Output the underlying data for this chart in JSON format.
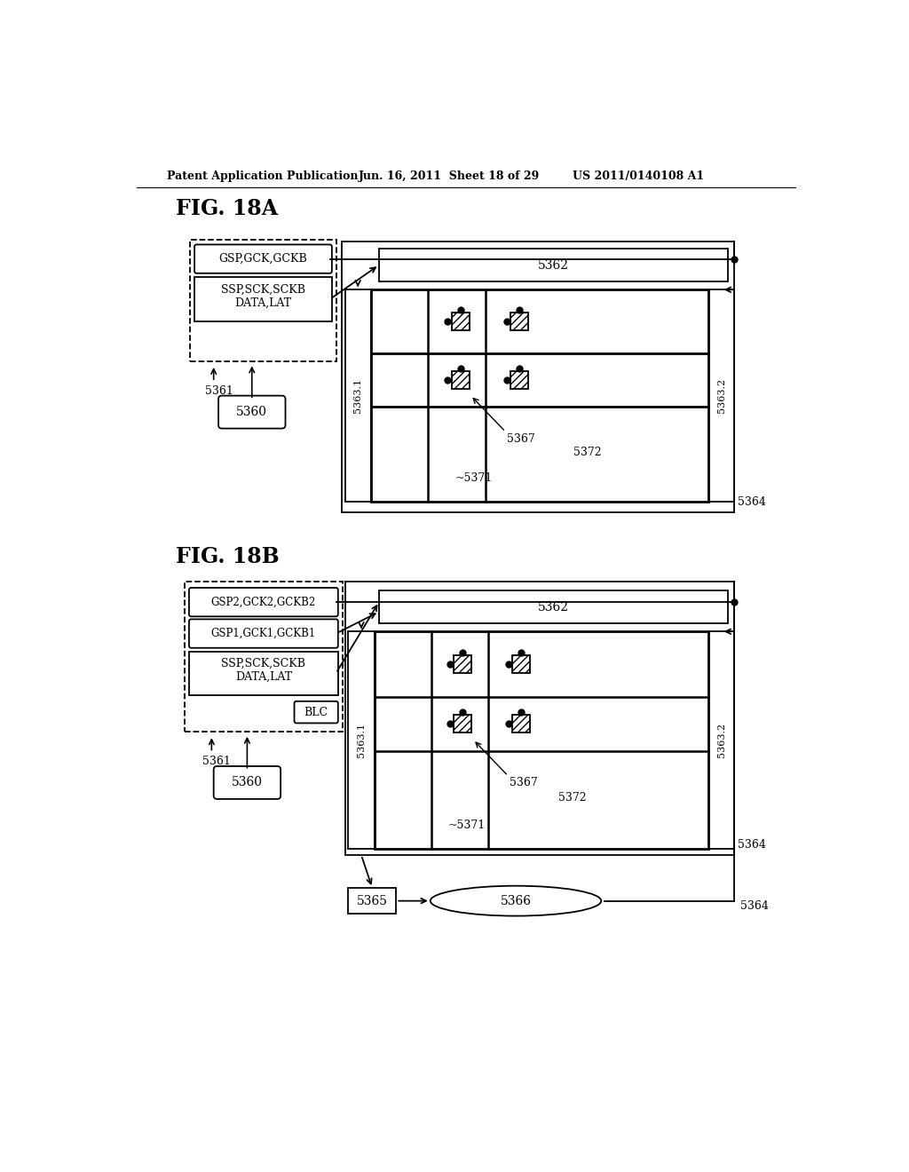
{
  "bg_color": "#ffffff",
  "header_left": "Patent Application Publication",
  "header_mid": "Jun. 16, 2011  Sheet 18 of 29",
  "header_right": "US 2011/0140108 A1"
}
